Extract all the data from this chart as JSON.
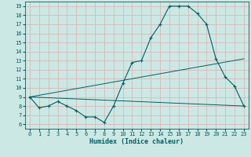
{
  "xlabel": "Humidex (Indice chaleur)",
  "bg_color": "#cce8e4",
  "grid_color": "#d8b8b8",
  "line_color": "#006060",
  "xlim": [
    -0.5,
    23.5
  ],
  "ylim": [
    5.5,
    19.5
  ],
  "xticks": [
    0,
    1,
    2,
    3,
    4,
    5,
    6,
    7,
    8,
    9,
    10,
    11,
    12,
    13,
    14,
    15,
    16,
    17,
    18,
    19,
    20,
    21,
    22,
    23
  ],
  "yticks": [
    6,
    7,
    8,
    9,
    10,
    11,
    12,
    13,
    14,
    15,
    16,
    17,
    18,
    19
  ],
  "curve_x": [
    0,
    1,
    2,
    3,
    4,
    5,
    6,
    7,
    8,
    9,
    10,
    11,
    12,
    13,
    14,
    15,
    16,
    17,
    18,
    19,
    20,
    21,
    22,
    23
  ],
  "curve_y": [
    9.0,
    7.8,
    8.0,
    8.5,
    8.0,
    7.5,
    6.8,
    6.8,
    6.2,
    8.0,
    10.5,
    12.8,
    13.0,
    15.5,
    17.0,
    19.0,
    19.0,
    19.0,
    18.2,
    17.0,
    13.2,
    11.2,
    10.2,
    8.0
  ],
  "line1_x": [
    0,
    23
  ],
  "line1_y": [
    9.0,
    8.0
  ],
  "line2_x": [
    0,
    23
  ],
  "line2_y": [
    9.0,
    13.2
  ]
}
